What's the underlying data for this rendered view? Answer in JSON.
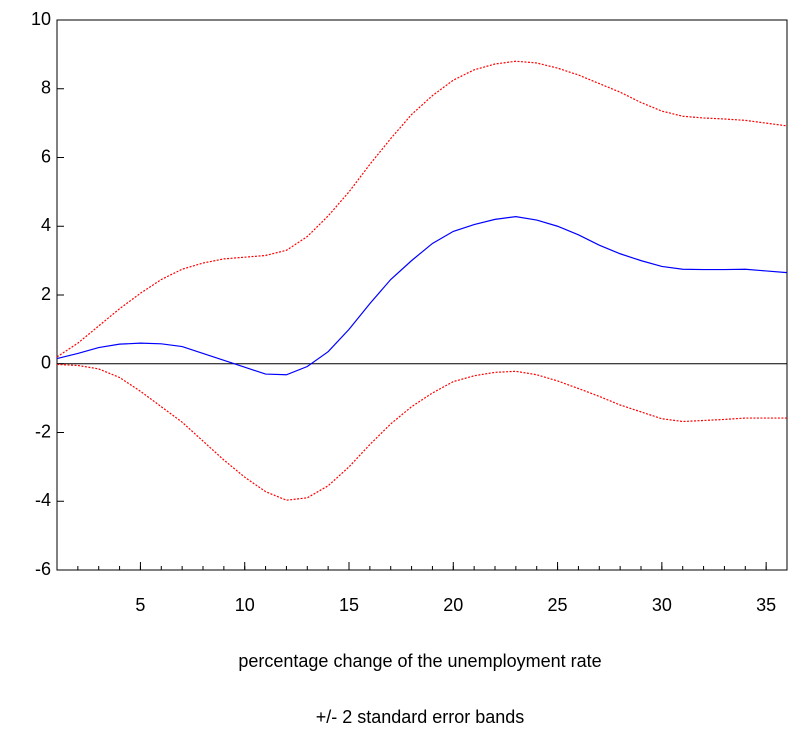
{
  "chart_data": {
    "type": "line",
    "x_label": "percentage change of the unemployment rate",
    "subtitle": "+/- 2 standard error bands",
    "x": [
      1,
      2,
      3,
      4,
      5,
      6,
      7,
      8,
      9,
      10,
      11,
      12,
      13,
      14,
      15,
      16,
      17,
      18,
      19,
      20,
      21,
      22,
      23,
      24,
      25,
      26,
      27,
      28,
      29,
      30,
      31,
      32,
      33,
      34,
      35,
      36
    ],
    "series": [
      {
        "color": "#0000ff",
        "style": "solid",
        "values": [
          0.15,
          0.3,
          0.47,
          0.57,
          0.6,
          0.58,
          0.5,
          0.3,
          0.1,
          -0.1,
          -0.3,
          -0.32,
          -0.08,
          0.35,
          1.0,
          1.75,
          2.45,
          3.0,
          3.5,
          3.85,
          4.05,
          4.2,
          4.28,
          4.18,
          4.0,
          3.75,
          3.45,
          3.2,
          3.0,
          2.83,
          2.75,
          2.74,
          2.74,
          2.75,
          2.7,
          2.65
        ]
      },
      {
        "color": "#ff0000",
        "style": "dotted",
        "values": [
          0.2,
          0.6,
          1.1,
          1.6,
          2.05,
          2.45,
          2.75,
          2.93,
          3.05,
          3.1,
          3.15,
          3.3,
          3.7,
          4.3,
          5.0,
          5.8,
          6.55,
          7.25,
          7.8,
          8.25,
          8.55,
          8.72,
          8.8,
          8.75,
          8.6,
          8.4,
          8.15,
          7.9,
          7.6,
          7.35,
          7.2,
          7.15,
          7.12,
          7.08,
          7.0,
          6.92
        ]
      },
      {
        "color": "#ff0000",
        "style": "dotted",
        "values": [
          -0.02,
          -0.05,
          -0.15,
          -0.4,
          -0.8,
          -1.25,
          -1.7,
          -2.25,
          -2.8,
          -3.3,
          -3.72,
          -3.97,
          -3.9,
          -3.55,
          -3.0,
          -2.35,
          -1.75,
          -1.25,
          -0.85,
          -0.52,
          -0.35,
          -0.25,
          -0.22,
          -0.32,
          -0.5,
          -0.72,
          -0.95,
          -1.2,
          -1.4,
          -1.6,
          -1.68,
          -1.65,
          -1.62,
          -1.58,
          -1.58,
          -1.58
        ]
      }
    ],
    "hline": 0,
    "xlim": [
      1,
      36
    ],
    "xticks": [
      5,
      10,
      15,
      20,
      25,
      30,
      35
    ],
    "ylim": [
      -6,
      10
    ],
    "yticks": [
      -6,
      -4,
      -2,
      0,
      2,
      4,
      6,
      8,
      10
    ]
  }
}
